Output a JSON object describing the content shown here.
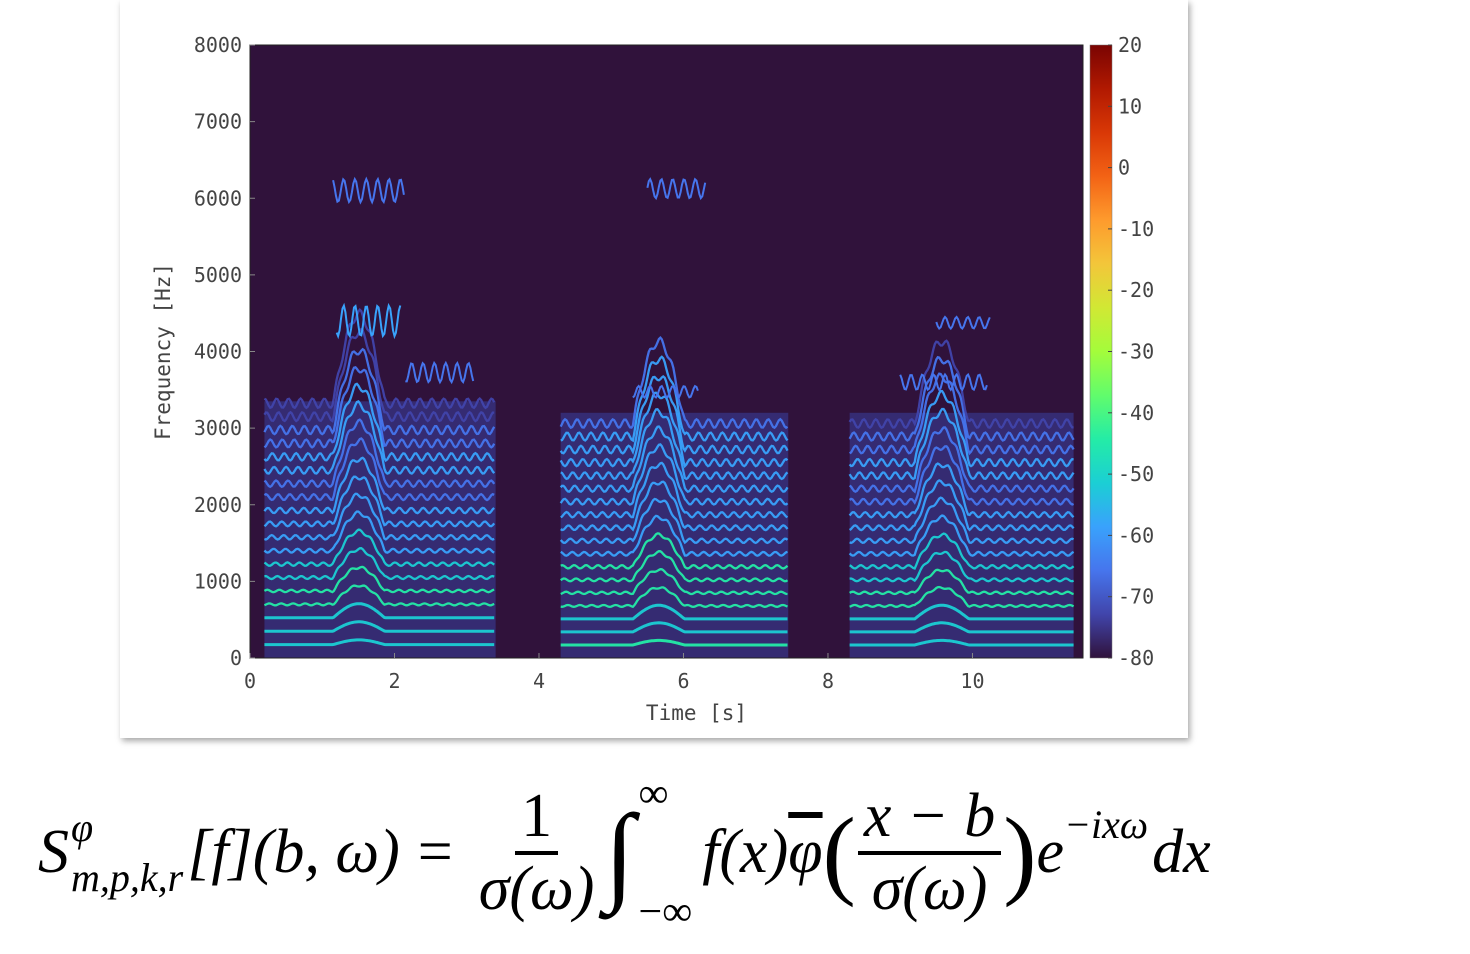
{
  "chart_data": {
    "type": "heatmap",
    "title": "",
    "xlabel": "Time [s]",
    "ylabel": "Frequency [Hz]",
    "xlim": [
      0,
      11.53
    ],
    "ylim": [
      0,
      8000
    ],
    "xticks": [
      0,
      2,
      4,
      6,
      8,
      10
    ],
    "xtick_labels": [
      "0",
      "2",
      "4",
      "6",
      "8",
      "10"
    ],
    "yticks": [
      0,
      1000,
      2000,
      3000,
      4000,
      5000,
      6000,
      7000,
      8000
    ],
    "ytick_labels": [
      "0",
      "1000",
      "2000",
      "3000",
      "4000",
      "5000",
      "6000",
      "7000",
      "8000"
    ],
    "grid": false,
    "colorbar": {
      "range": [
        -80,
        20
      ],
      "ticks": [
        20,
        10,
        0,
        -10,
        -20,
        -30,
        -40,
        -50,
        -60,
        -70,
        -80
      ],
      "tick_labels": [
        "20",
        "10",
        "0",
        "-10",
        "-20",
        "-30",
        "-40",
        "-50",
        "-60",
        "-70",
        "-80"
      ],
      "colormap": [
        "#30123b",
        "#4145ab",
        "#4675ed",
        "#39a2fc",
        "#1bcfd4",
        "#24eca6",
        "#61fc6c",
        "#a4fc3b",
        "#d1e834",
        "#f3c63a",
        "#fe9b2d",
        "#f36315",
        "#d93806",
        "#b11901",
        "#7a0402"
      ],
      "location": "right"
    },
    "background_level_db": -80,
    "voiced_segments": [
      {
        "start_s": 0.2,
        "end_s": 3.4,
        "top_hz": 3350,
        "f0_hz": 175,
        "rise_start_s": 1.15,
        "rise_end_s": 2.15,
        "peak_db": -45
      },
      {
        "start_s": 4.3,
        "end_s": 7.45,
        "top_hz": 3200,
        "f0_hz": 170,
        "rise_start_s": 5.3,
        "rise_end_s": 6.3,
        "peak_db": -42
      },
      {
        "start_s": 8.3,
        "end_s": 11.4,
        "top_hz": 3200,
        "f0_hz": 170,
        "rise_start_s": 9.2,
        "rise_end_s": 10.25,
        "peak_db": -45
      }
    ],
    "high_bursts": [
      {
        "t0_s": 1.2,
        "t1_s": 2.1,
        "hz0": 4200,
        "hz1": 4600,
        "db": -60
      },
      {
        "t0_s": 1.15,
        "t1_s": 2.15,
        "hz0": 5950,
        "hz1": 6250,
        "db": -66
      },
      {
        "t0_s": 2.15,
        "t1_s": 3.1,
        "hz0": 3600,
        "hz1": 3850,
        "db": -64
      },
      {
        "t0_s": 5.5,
        "t1_s": 6.3,
        "hz0": 6000,
        "hz1": 6250,
        "db": -68
      },
      {
        "t0_s": 5.3,
        "t1_s": 6.2,
        "hz0": 3400,
        "hz1": 3550,
        "db": -64
      },
      {
        "t0_s": 9.5,
        "t1_s": 10.25,
        "hz0": 4300,
        "hz1": 4450,
        "db": -64
      },
      {
        "t0_s": 9.0,
        "t1_s": 10.2,
        "hz0": 3500,
        "hz1": 3700,
        "db": -64
      }
    ]
  },
  "formula": {
    "S": "S",
    "sup_phi": "φ",
    "subscript": "m,p,k,r",
    "f_bracket": "[f]",
    "args": "(b, ω)",
    "equals": "=",
    "frac1_num": "1",
    "frac1_den": "σ(ω)",
    "integral": "∫",
    "upper_limit": "∞",
    "lower_limit": "−∞",
    "fx": "f(x)",
    "phibar": "φ",
    "lparen": "(",
    "frac2_num": "x − b",
    "frac2_den": "σ(ω)",
    "rparen": ")",
    "e": "e",
    "exponent": "−ixω",
    "dx": "dx"
  }
}
